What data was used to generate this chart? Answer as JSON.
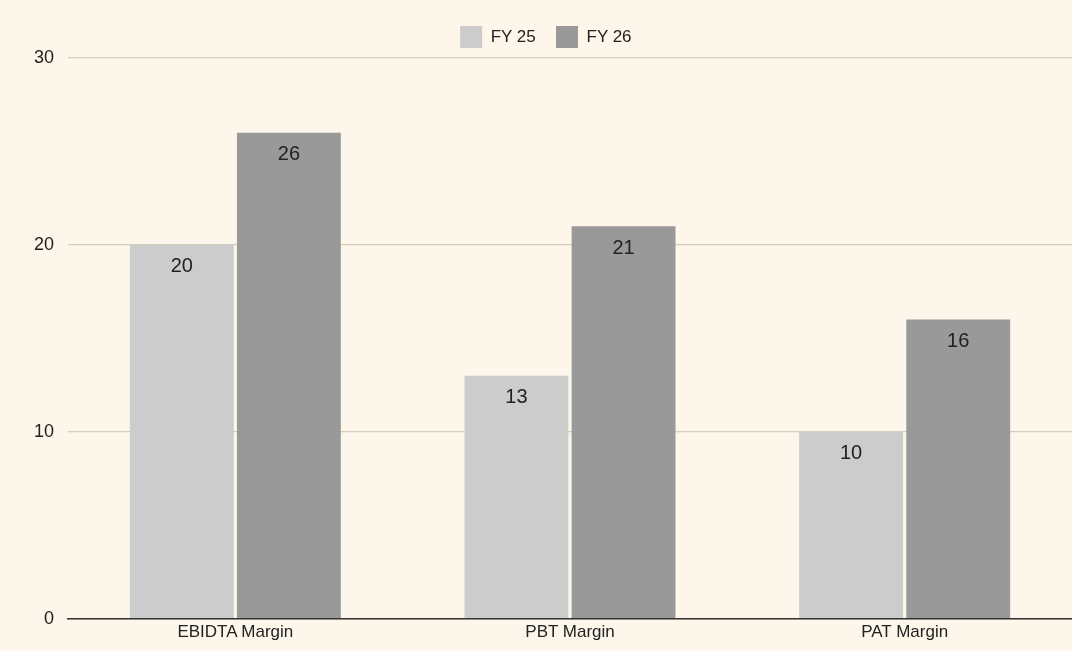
{
  "chart_data": {
    "type": "bar",
    "categories": [
      "EBIDTA Margin",
      "PBT Margin",
      "PAT Margin"
    ],
    "series": [
      {
        "name": "FY 25",
        "color": "#cccccc",
        "values": [
          20,
          13,
          10
        ]
      },
      {
        "name": "FY 26",
        "color": "#999999",
        "values": [
          26,
          21,
          16
        ]
      }
    ],
    "ylim": [
      0,
      30
    ],
    "yticks": [
      0,
      10,
      20,
      30
    ],
    "grid": "y",
    "legend": "top",
    "data_labels": true
  }
}
